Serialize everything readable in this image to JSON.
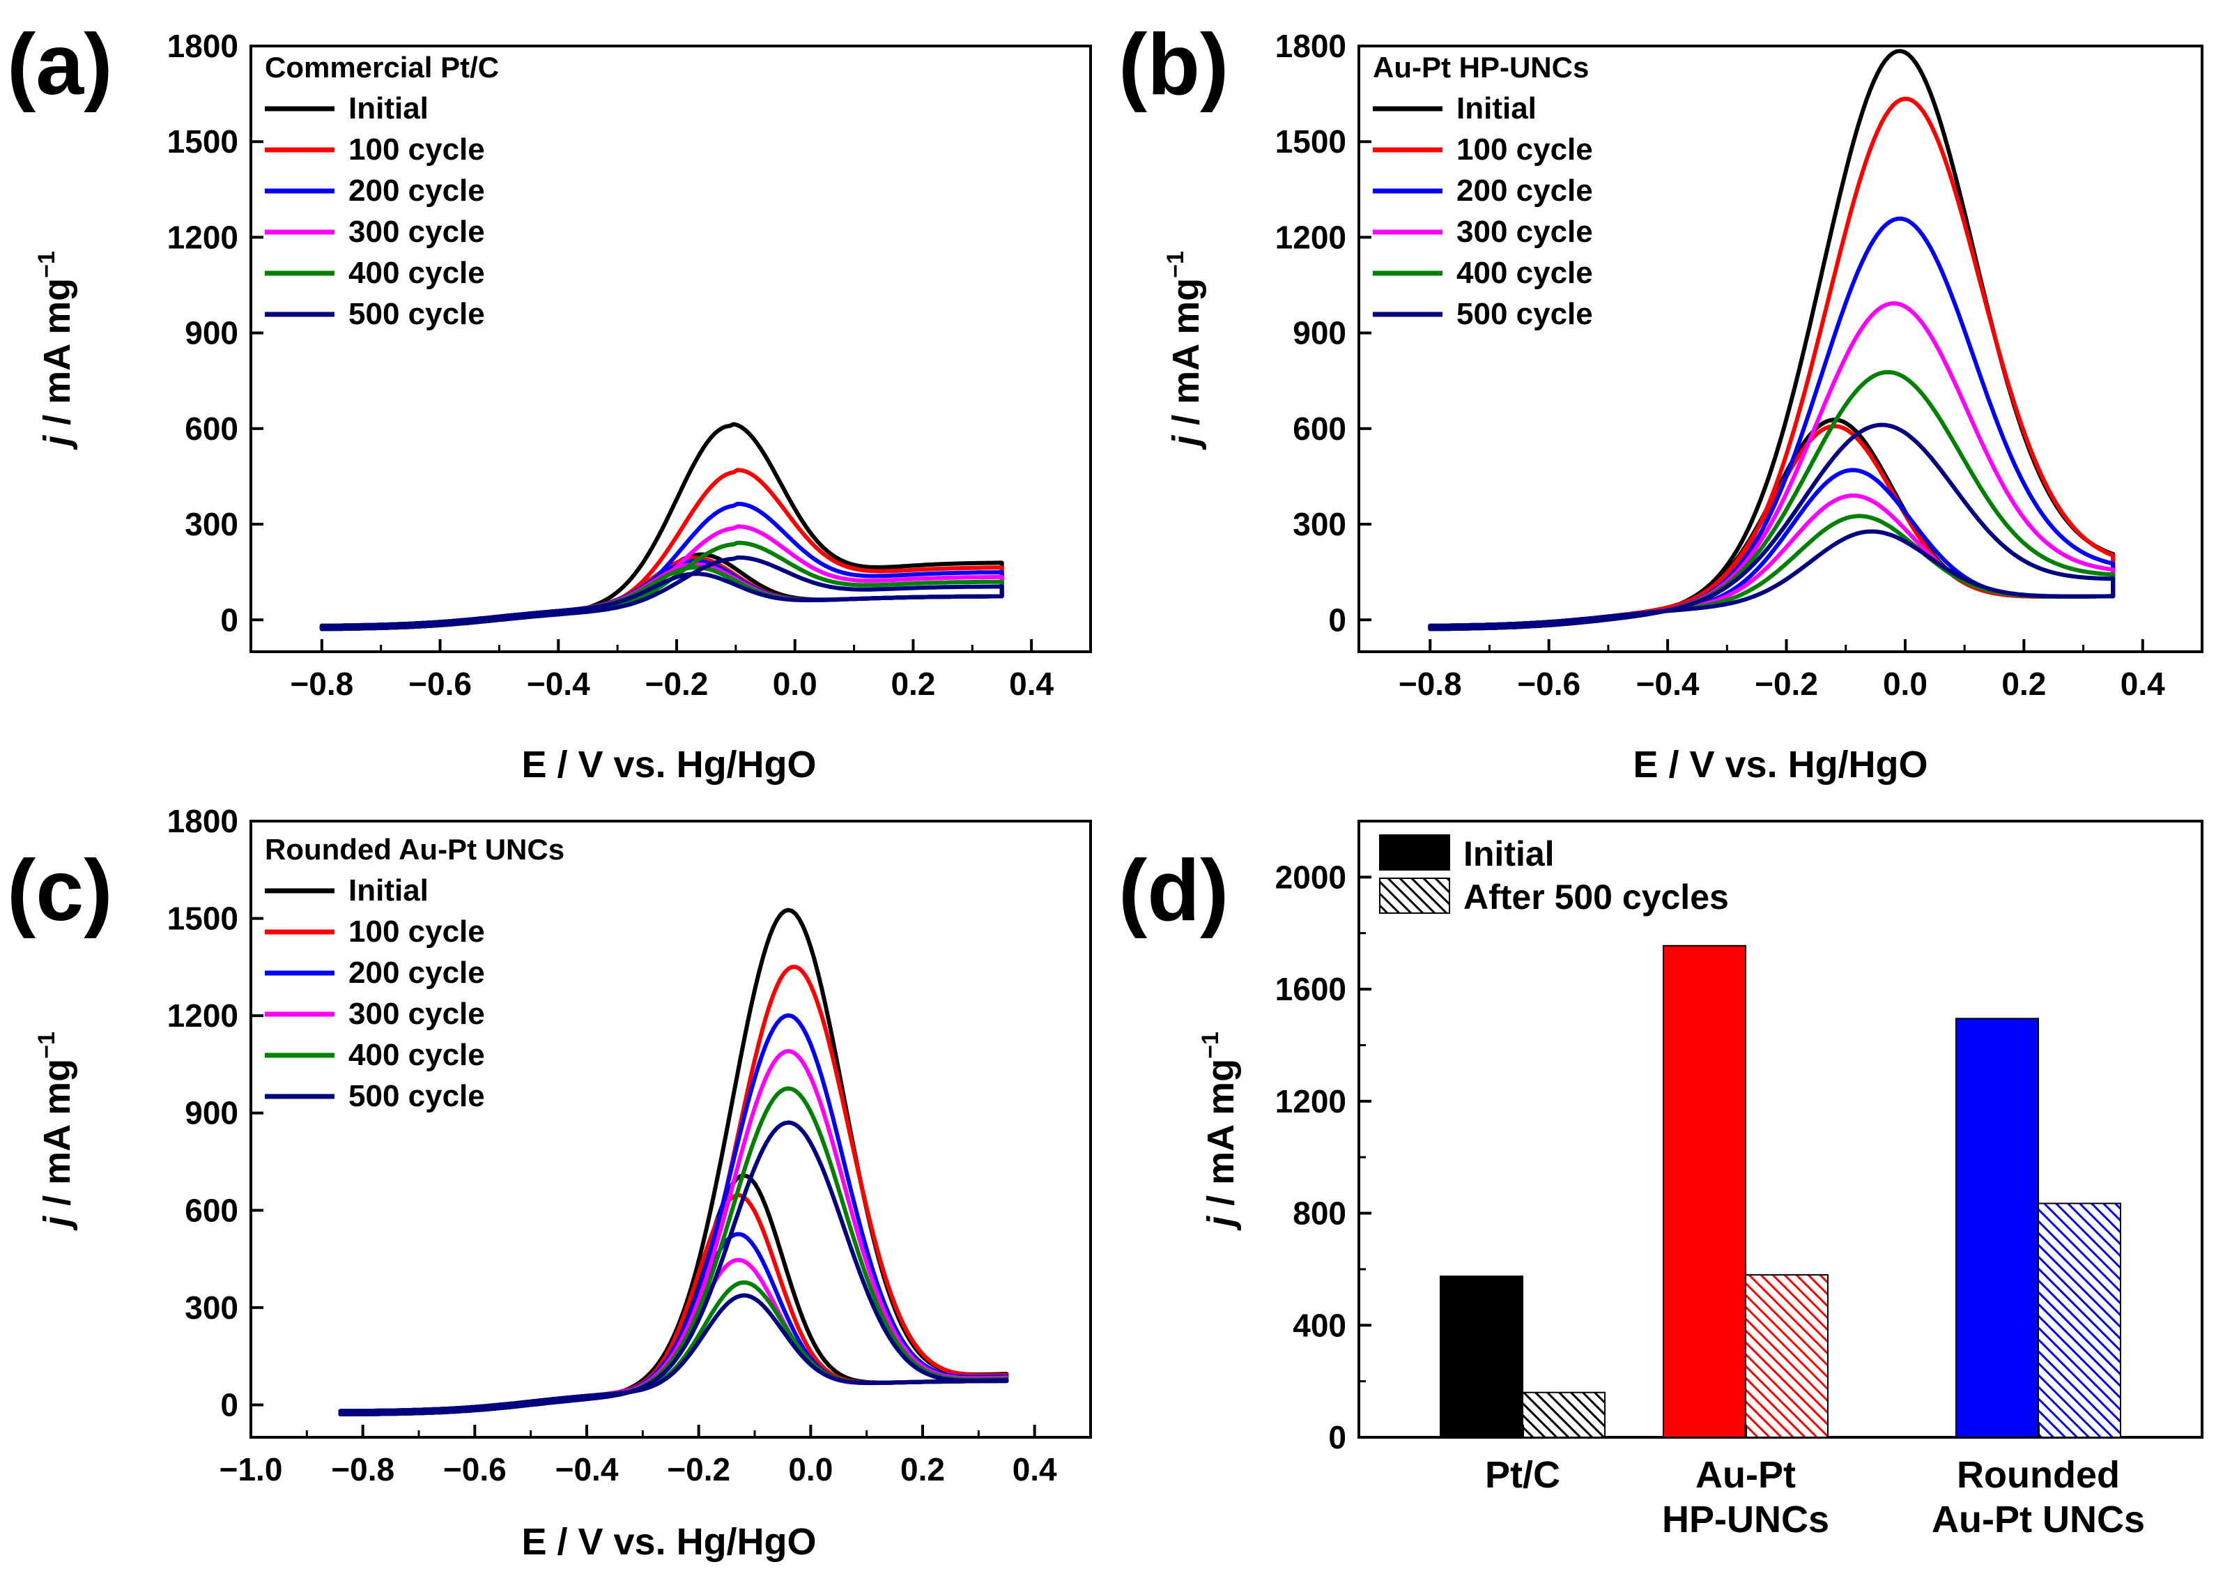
{
  "figure": {
    "panel_labels": [
      "(a)",
      "(b)",
      "(c)",
      "(d)"
    ]
  },
  "chart_data": [
    {
      "panel": "(a)",
      "type": "line",
      "title": "Commercial Pt/C",
      "xlabel": "E / V vs. Hg/HgO",
      "ylabel_prefix": "j",
      "ylabel_unit": " / mA mg",
      "ylabel_sup": "−1",
      "xlim": [
        -0.92,
        0.5
      ],
      "ylim": [
        -100,
        1800
      ],
      "xticks": [
        -0.8,
        -0.6,
        -0.4,
        -0.2,
        0.0,
        0.2,
        0.4
      ],
      "xtick_labels": [
        "−0.8",
        "−0.6",
        "−0.4",
        "−0.2",
        "0.0",
        "0.2",
        "0.4"
      ],
      "yticks": [
        0,
        300,
        600,
        900,
        1200,
        1500,
        1800
      ],
      "ytick_labels": [
        "0",
        "300",
        "600",
        "900",
        "1200",
        "1500",
        "1800"
      ],
      "series": [
        {
          "name": "Initial",
          "color": "#000000",
          "fwd_peak": 575,
          "fwd_pos": -0.11,
          "bwd_peak": 160,
          "bwd_pos": -0.16
        },
        {
          "name": "100 cycle",
          "color": "#ff0000",
          "fwd_peak": 430,
          "fwd_pos": -0.1,
          "bwd_peak": 150,
          "bwd_pos": -0.17
        },
        {
          "name": "200 cycle",
          "color": "#0000ff",
          "fwd_peak": 325,
          "fwd_pos": -0.1,
          "bwd_peak": 140,
          "bwd_pos": -0.17
        },
        {
          "name": "300 cycle",
          "color": "#ff00ff",
          "fwd_peak": 255,
          "fwd_pos": -0.1,
          "bwd_peak": 130,
          "bwd_pos": -0.17
        },
        {
          "name": "400 cycle",
          "color": "#008000",
          "fwd_peak": 205,
          "fwd_pos": -0.1,
          "bwd_peak": 120,
          "bwd_pos": -0.17
        },
        {
          "name": "500 cycle",
          "color": "#000080",
          "fwd_peak": 160,
          "fwd_pos": -0.1,
          "bwd_peak": 100,
          "bwd_pos": -0.17
        }
      ]
    },
    {
      "panel": "(b)",
      "type": "line",
      "title": "Au-Pt HP-UNCs",
      "xlabel": "E / V vs. Hg/HgO",
      "ylabel_prefix": "j",
      "ylabel_unit": " / mA mg",
      "ylabel_sup": "−1",
      "xlim": [
        -0.92,
        0.5
      ],
      "ylim": [
        -100,
        1800
      ],
      "xticks": [
        -0.8,
        -0.6,
        -0.4,
        -0.2,
        0.0,
        0.2,
        0.4
      ],
      "xtick_labels": [
        "−0.8",
        "−0.6",
        "−0.4",
        "−0.2",
        "0.0",
        "0.2",
        "0.4"
      ],
      "yticks": [
        0,
        300,
        600,
        900,
        1200,
        1500,
        1800
      ],
      "ytick_labels": [
        "0",
        "300",
        "600",
        "900",
        "1200",
        "1500",
        "1800"
      ],
      "series": [
        {
          "name": "Initial",
          "color": "#000000",
          "fwd_peak": 1750,
          "fwd_pos": -0.01,
          "bwd_peak": 580,
          "bwd_pos": -0.12
        },
        {
          "name": "100 cycle",
          "color": "#ff0000",
          "fwd_peak": 1600,
          "fwd_pos": 0.0,
          "bwd_peak": 560,
          "bwd_pos": -0.12
        },
        {
          "name": "200 cycle",
          "color": "#0000ff",
          "fwd_peak": 1225,
          "fwd_pos": -0.01,
          "bwd_peak": 420,
          "bwd_pos": -0.09
        },
        {
          "name": "300 cycle",
          "color": "#ff00ff",
          "fwd_peak": 960,
          "fwd_pos": -0.02,
          "bwd_peak": 340,
          "bwd_pos": -0.09
        },
        {
          "name": "400 cycle",
          "color": "#008000",
          "fwd_peak": 745,
          "fwd_pos": -0.03,
          "bwd_peak": 275,
          "bwd_pos": -0.08
        },
        {
          "name": "500 cycle",
          "color": "#000080",
          "fwd_peak": 580,
          "fwd_pos": -0.04,
          "bwd_peak": 225,
          "bwd_pos": -0.06
        }
      ]
    },
    {
      "panel": "(c)",
      "type": "line",
      "title": "Rounded Au-Pt UNCs",
      "xlabel": "E / V vs. Hg/HgO",
      "ylabel_prefix": "j",
      "ylabel_unit": " / mA mg",
      "ylabel_sup": "−1",
      "xlim": [
        -1.0,
        0.5
      ],
      "ylim": [
        -100,
        1800
      ],
      "xticks": [
        -1.0,
        -0.8,
        -0.6,
        -0.4,
        -0.2,
        0.0,
        0.2,
        0.4
      ],
      "xtick_labels": [
        "−1.0",
        "−0.8",
        "−0.6",
        "−0.4",
        "−0.2",
        "0.0",
        "0.2",
        "0.4"
      ],
      "yticks": [
        0,
        300,
        600,
        900,
        1200,
        1500,
        1800
      ],
      "ytick_labels": [
        "0",
        "300",
        "600",
        "900",
        "1200",
        "1500",
        "1800"
      ],
      "series": [
        {
          "name": "Initial",
          "color": "#000000",
          "fwd_peak": 1495,
          "fwd_pos": -0.04,
          "bwd_peak": 660,
          "bwd_pos": -0.12
        },
        {
          "name": "100 cycle",
          "color": "#ff0000",
          "fwd_peak": 1320,
          "fwd_pos": -0.03,
          "bwd_peak": 600,
          "bwd_pos": -0.13
        },
        {
          "name": "200 cycle",
          "color": "#0000ff",
          "fwd_peak": 1170,
          "fwd_pos": -0.04,
          "bwd_peak": 480,
          "bwd_pos": -0.13
        },
        {
          "name": "300 cycle",
          "color": "#ff00ff",
          "fwd_peak": 1060,
          "fwd_pos": -0.04,
          "bwd_peak": 400,
          "bwd_pos": -0.13
        },
        {
          "name": "400 cycle",
          "color": "#008000",
          "fwd_peak": 945,
          "fwd_pos": -0.04,
          "bwd_peak": 330,
          "bwd_pos": -0.12
        },
        {
          "name": "500 cycle",
          "color": "#000080",
          "fwd_peak": 840,
          "fwd_pos": -0.04,
          "bwd_peak": 290,
          "bwd_pos": -0.12
        }
      ]
    },
    {
      "panel": "(d)",
      "type": "bar",
      "ylabel_prefix": "j",
      "ylabel_unit": " / mA mg",
      "ylabel_sup": "−1",
      "ylim": [
        0,
        2200
      ],
      "yticks": [
        0,
        400,
        800,
        1200,
        1600,
        2000
      ],
      "ytick_labels": [
        "0",
        "400",
        "800",
        "1200",
        "1600",
        "2000"
      ],
      "categories": [
        {
          "lines": [
            "Pt/C"
          ],
          "color": "#000000",
          "initial": 575,
          "after": 160
        },
        {
          "lines": [
            "Au-Pt",
            "HP-UNCs"
          ],
          "color": "#ff0000",
          "initial": 1755,
          "after": 580
        },
        {
          "lines": [
            "Rounded",
            "Au-Pt UNCs"
          ],
          "color": "#0000ff",
          "initial": 1495,
          "after": 835
        }
      ],
      "legend": [
        {
          "name": "Initial",
          "style": "solid"
        },
        {
          "name": "After 500 cycles",
          "style": "hatched"
        }
      ]
    }
  ]
}
